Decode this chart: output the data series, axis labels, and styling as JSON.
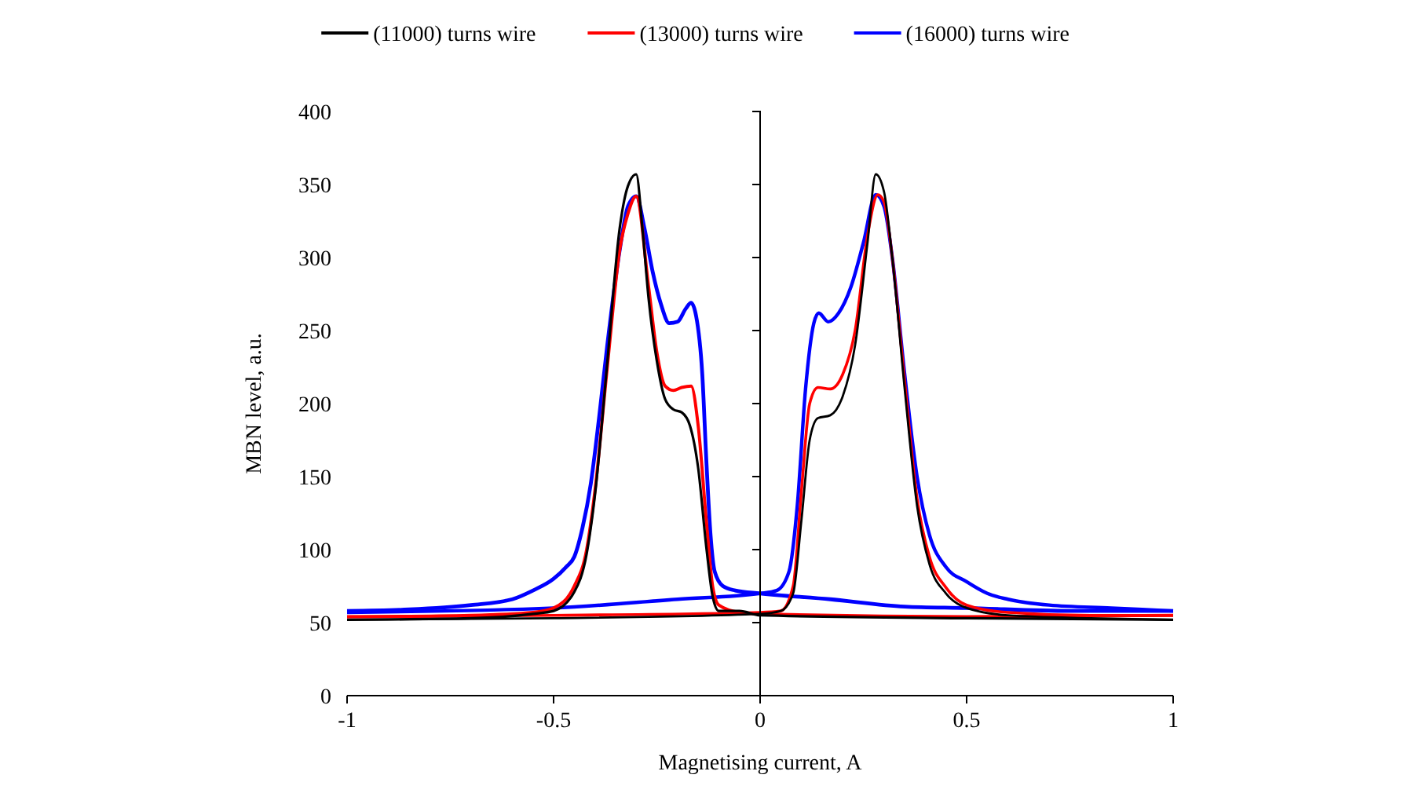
{
  "chart_data": {
    "type": "line",
    "xlabel": "Magnetising current, A",
    "ylabel": "MBN level, a.u.",
    "xlim": [
      -1,
      1
    ],
    "xticks": [
      -1,
      -0.5,
      0,
      0.5,
      1
    ],
    "ylim": [
      0,
      400
    ],
    "yticks": [
      0,
      50,
      100,
      150,
      200,
      250,
      300,
      350,
      400
    ],
    "grid": false,
    "legend": "top",
    "marker": "none",
    "line_style": "solid",
    "series": [
      {
        "name": "(11000) turns wire",
        "color": "#000000",
        "x": [
          -1,
          -0.5,
          0,
          0.05,
          0.08,
          0.1,
          0.12,
          0.14,
          0.17,
          0.2,
          0.23,
          0.26,
          0.28,
          0.3,
          0.32,
          0.35,
          0.38,
          0.41,
          0.45,
          0.5,
          0.6,
          0.8,
          1
        ],
        "values": [
          52,
          53,
          56,
          58,
          70,
          120,
          175,
          190,
          192,
          205,
          240,
          310,
          357,
          345,
          300,
          210,
          130,
          90,
          70,
          60,
          55,
          53,
          52
        ]
      },
      {
        "color": "#000000",
        "x": [
          -1,
          -0.7,
          -0.55,
          -0.5,
          -0.45,
          -0.42,
          -0.4,
          -0.37,
          -0.34,
          -0.32,
          -0.3,
          -0.285,
          -0.27,
          -0.25,
          -0.23,
          -0.21,
          -0.19,
          -0.17,
          -0.15,
          -0.13,
          -0.115,
          -0.1,
          -0.05,
          0,
          0.5,
          1
        ],
        "values": [
          52,
          53,
          56,
          58,
          71,
          97,
          137,
          228,
          320,
          349,
          357,
          320,
          272,
          229,
          203,
          196,
          194,
          185,
          156,
          101,
          68,
          58,
          58,
          55,
          53,
          52
        ]
      },
      {
        "name": "(13000) turns wire",
        "color": "#ff0000",
        "x": [
          -1,
          -0.5,
          0,
          0.05,
          0.08,
          0.1,
          0.12,
          0.14,
          0.17,
          0.2,
          0.23,
          0.26,
          0.285,
          0.3,
          0.32,
          0.35,
          0.38,
          0.41,
          0.45,
          0.5,
          0.6,
          0.8,
          1
        ],
        "values": [
          54,
          55,
          57,
          58,
          75,
          140,
          200,
          211,
          210,
          220,
          250,
          315,
          343,
          338,
          300,
          215,
          135,
          95,
          74,
          62,
          57,
          55,
          55
        ]
      },
      {
        "color": "#ff0000",
        "x": [
          -1,
          -0.7,
          -0.55,
          -0.5,
          -0.45,
          -0.42,
          -0.4,
          -0.37,
          -0.34,
          -0.32,
          -0.3,
          -0.27,
          -0.25,
          -0.23,
          -0.21,
          -0.19,
          -0.167,
          -0.15,
          -0.13,
          -0.115,
          -0.1,
          -0.05,
          0,
          0.5,
          1
        ],
        "values": [
          54,
          55,
          57,
          60,
          75,
          100,
          140,
          225,
          305,
          330,
          342,
          280,
          235,
          212,
          209,
          211,
          212,
          185,
          119,
          75,
          62,
          57,
          56,
          54,
          55
        ]
      },
      {
        "name": "(16000) turns wire",
        "color": "#0000ff",
        "x": [
          -1,
          -0.5,
          -0.2,
          0,
          0.04,
          0.07,
          0.09,
          0.11,
          0.13,
          0.142,
          0.165,
          0.19,
          0.22,
          0.25,
          0.28,
          0.3,
          0.32,
          0.35,
          0.38,
          0.41,
          0.45,
          0.5,
          0.55,
          0.6,
          0.7,
          0.85,
          1
        ],
        "values": [
          57,
          60,
          66,
          70,
          72,
          85,
          130,
          210,
          255,
          262,
          256,
          262,
          280,
          310,
          343,
          335,
          300,
          220,
          150,
          110,
          88,
          78,
          70,
          66,
          62,
          60,
          58
        ]
      },
      {
        "color": "#0000ff",
        "x": [
          -1,
          -0.85,
          -0.7,
          -0.6,
          -0.55,
          -0.5,
          -0.47,
          -0.45,
          -0.43,
          -0.41,
          -0.39,
          -0.37,
          -0.34,
          -0.32,
          -0.3,
          -0.28,
          -0.26,
          -0.24,
          -0.22,
          -0.2,
          -0.18,
          -0.167,
          -0.155,
          -0.14,
          -0.13,
          -0.12,
          -0.11,
          -0.09,
          -0.06,
          0,
          0.17,
          0.35,
          0.5,
          0.75,
          1
        ],
        "values": [
          58,
          59,
          62,
          66,
          72,
          80,
          88,
          95,
          115,
          145,
          190,
          240,
          305,
          335,
          342,
          320,
          290,
          268,
          255,
          256,
          265,
          269,
          260,
          220,
          160,
          110,
          85,
          75,
          72,
          70,
          66,
          61,
          60,
          58,
          58
        ]
      }
    ]
  }
}
